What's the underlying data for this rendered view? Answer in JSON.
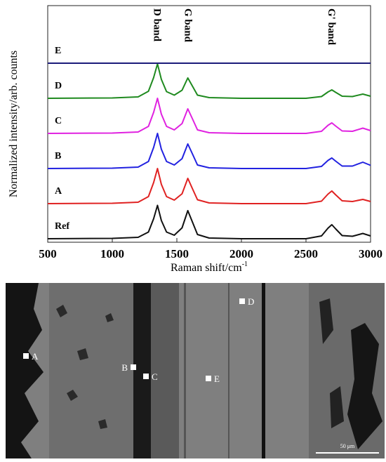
{
  "chart_data": {
    "type": "line",
    "y_label": "Normalized intensity/arb. counts",
    "x_label": "Raman shift/cm",
    "x_label_sup": "-1",
    "annotations": [
      "D band",
      "G band",
      "G' band"
    ],
    "annotation_x": [
      1350,
      1590,
      2700
    ],
    "x": [
      500,
      1000,
      1200,
      1280,
      1320,
      1350,
      1380,
      1420,
      1480,
      1540,
      1585,
      1620,
      1660,
      1750,
      2000,
      2500,
      2620,
      2670,
      2700,
      2730,
      2780,
      2860,
      2940,
      3000
    ],
    "xlim": [
      500,
      3000
    ],
    "xticks": [
      500,
      1000,
      1500,
      2000,
      2500,
      3000
    ],
    "ylim": [
      0,
      6.74
    ],
    "series": [
      {
        "name": "Ref",
        "color": "#111111",
        "values": [
          0.1,
          0.11,
          0.14,
          0.29,
          0.67,
          1.05,
          0.62,
          0.29,
          0.2,
          0.41,
          0.9,
          0.58,
          0.22,
          0.12,
          0.1,
          0.1,
          0.18,
          0.4,
          0.5,
          0.38,
          0.19,
          0.17,
          0.25,
          0.18
        ]
      },
      {
        "name": "A",
        "color": "#e02222",
        "values": [
          1.1,
          1.11,
          1.14,
          1.3,
          1.7,
          2.1,
          1.65,
          1.3,
          1.2,
          1.38,
          1.82,
          1.53,
          1.21,
          1.12,
          1.1,
          1.1,
          1.17,
          1.37,
          1.46,
          1.35,
          1.18,
          1.16,
          1.22,
          1.16
        ]
      },
      {
        "name": "B",
        "color": "#2222e0",
        "values": [
          2.1,
          2.11,
          2.14,
          2.3,
          2.7,
          3.1,
          2.65,
          2.3,
          2.2,
          2.38,
          2.8,
          2.52,
          2.2,
          2.12,
          2.1,
          2.1,
          2.16,
          2.33,
          2.4,
          2.31,
          2.17,
          2.17,
          2.28,
          2.19
        ]
      },
      {
        "name": "C",
        "color": "#e022e0",
        "values": [
          3.1,
          3.11,
          3.14,
          3.3,
          3.7,
          4.1,
          3.65,
          3.3,
          3.2,
          3.38,
          3.8,
          3.52,
          3.2,
          3.12,
          3.1,
          3.1,
          3.16,
          3.33,
          3.4,
          3.31,
          3.17,
          3.16,
          3.25,
          3.18
        ]
      },
      {
        "name": "D",
        "color": "#1f8a1f",
        "values": [
          4.1,
          4.11,
          4.14,
          4.3,
          4.69,
          5.08,
          4.64,
          4.29,
          4.19,
          4.33,
          4.68,
          4.45,
          4.19,
          4.12,
          4.1,
          4.1,
          4.15,
          4.28,
          4.34,
          4.27,
          4.16,
          4.15,
          4.22,
          4.16
        ]
      },
      {
        "name": "E",
        "color": "#1c1c7a",
        "values": [
          5.1,
          5.1,
          5.1,
          5.1,
          5.1,
          5.1,
          5.1,
          5.1,
          5.1,
          5.1,
          5.1,
          5.1,
          5.1,
          5.1,
          5.1,
          5.1,
          5.1,
          5.1,
          5.1,
          5.1,
          5.1,
          5.1,
          5.1,
          5.1
        ]
      }
    ]
  },
  "image": {
    "markers": [
      "A",
      "B",
      "C",
      "D",
      "E"
    ],
    "scale_bar": "50 μm"
  }
}
